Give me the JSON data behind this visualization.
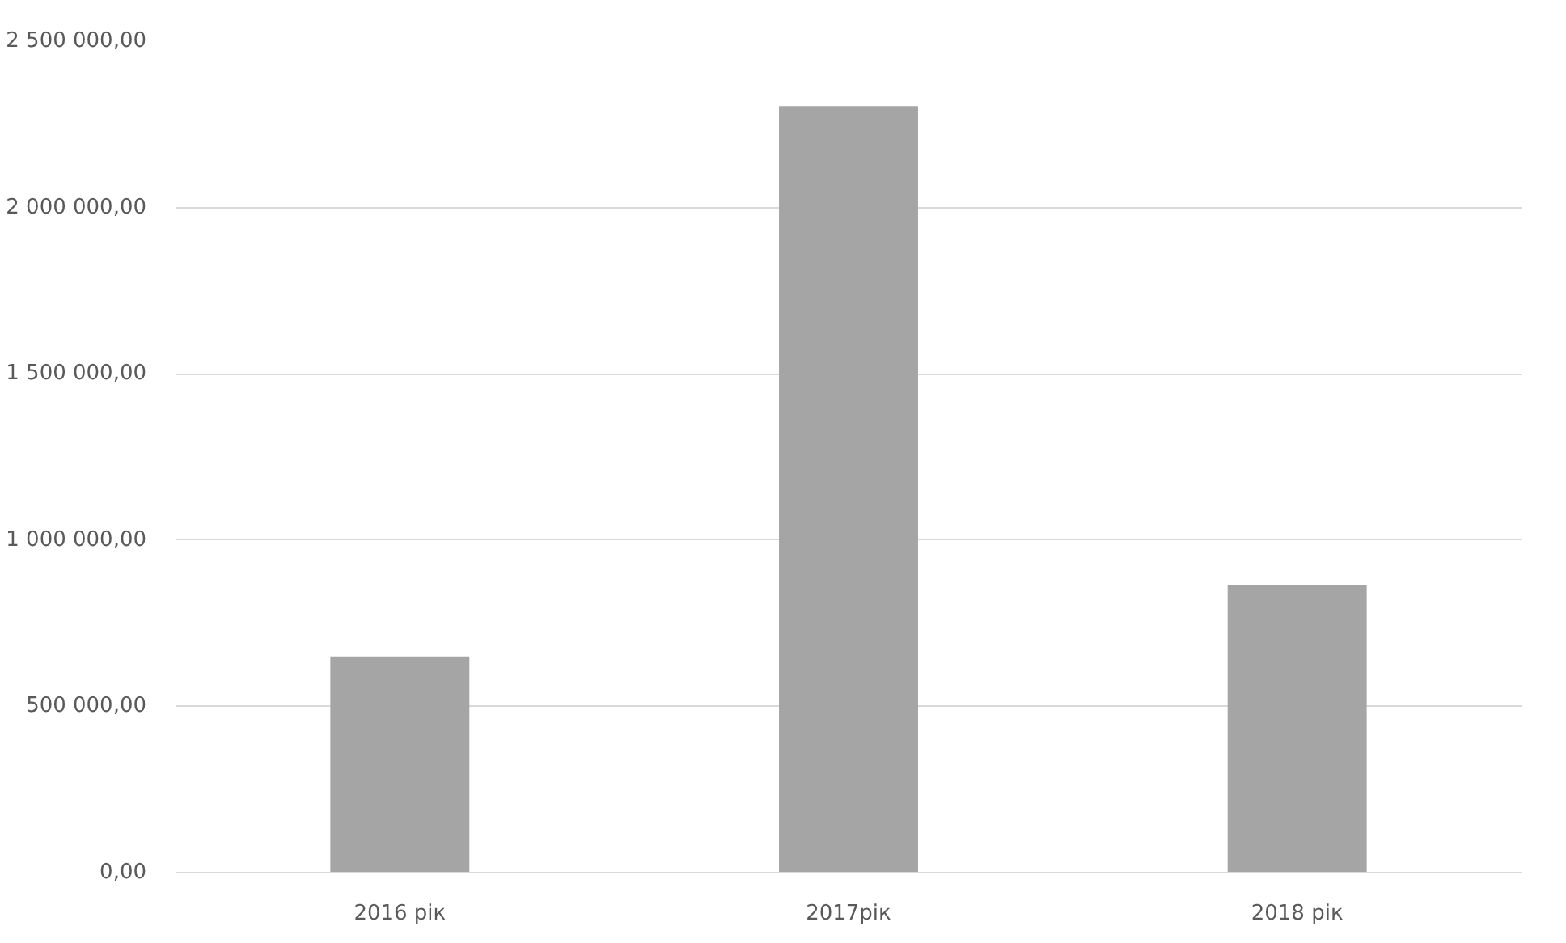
{
  "chart_data": {
    "type": "bar",
    "categories": [
      "2016 рік",
      "2017рік",
      "2018 рік"
    ],
    "values": [
      650000,
      2305000,
      866000
    ],
    "color": "#a5a5a5",
    "ylim": [
      0,
      2500000
    ],
    "yticks": [
      {
        "value": 0,
        "label": "0,00"
      },
      {
        "value": 500000,
        "label": "500 000,00"
      },
      {
        "value": 1000000,
        "label": "1 000 000,00"
      },
      {
        "value": 1500000,
        "label": "1 500 000,00"
      },
      {
        "value": 2000000,
        "label": "2 000 000,00"
      },
      {
        "value": 2500000,
        "label": "2 500 000,00"
      }
    ],
    "grid": "y"
  }
}
